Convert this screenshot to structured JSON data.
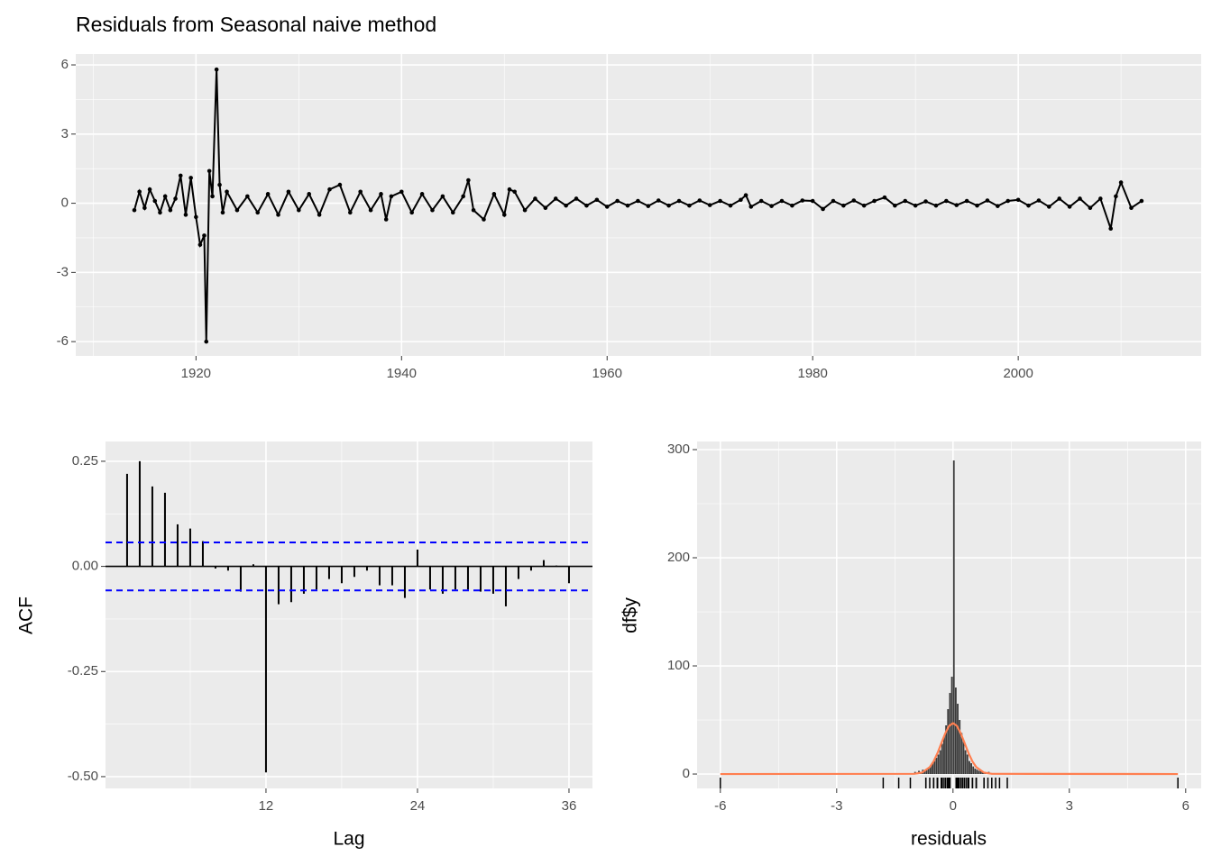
{
  "chart_data": [
    {
      "type": "line",
      "title": "Residuals from Seasonal naive method",
      "color": "#000000",
      "grid": true,
      "x": [
        1914,
        1914.5,
        1915,
        1915.5,
        1916,
        1916.5,
        1917,
        1917.5,
        1918,
        1918.5,
        1919,
        1919.5,
        1920,
        1920.4,
        1920.8,
        1921,
        1921.3,
        1921.6,
        1922,
        1922.3,
        1922.6,
        1923,
        1924,
        1925,
        1926,
        1927,
        1928,
        1929,
        1930,
        1931,
        1932,
        1933,
        1934,
        1935,
        1936,
        1937,
        1938,
        1938.5,
        1939,
        1940,
        1941,
        1942,
        1943,
        1944,
        1945,
        1946,
        1946.5,
        1947,
        1948,
        1949,
        1950,
        1950.5,
        1951,
        1952,
        1953,
        1954,
        1955,
        1956,
        1957,
        1958,
        1959,
        1960,
        1961,
        1962,
        1963,
        1964,
        1965,
        1966,
        1967,
        1968,
        1969,
        1970,
        1971,
        1972,
        1973,
        1973.5,
        1974,
        1975,
        1976,
        1977,
        1978,
        1979,
        1980,
        1981,
        1982,
        1983,
        1984,
        1985,
        1986,
        1987,
        1988,
        1989,
        1990,
        1991,
        1992,
        1993,
        1994,
        1995,
        1996,
        1997,
        1998,
        1999,
        2000,
        2001,
        2002,
        2003,
        2004,
        2005,
        2006,
        2007,
        2008,
        2009,
        2009.5,
        2010,
        2011,
        2012
      ],
      "values": [
        -0.3,
        0.5,
        -0.2,
        0.6,
        0.1,
        -0.4,
        0.3,
        -0.3,
        0.2,
        1.2,
        -0.5,
        1.1,
        -0.6,
        -1.8,
        -1.4,
        -6.0,
        1.4,
        0.3,
        5.8,
        0.8,
        -0.4,
        0.5,
        -0.3,
        0.3,
        -0.4,
        0.4,
        -0.5,
        0.5,
        -0.3,
        0.4,
        -0.5,
        0.6,
        0.8,
        -0.4,
        0.5,
        -0.3,
        0.4,
        -0.7,
        0.3,
        0.5,
        -0.4,
        0.4,
        -0.3,
        0.3,
        -0.4,
        0.3,
        1.0,
        -0.3,
        -0.7,
        0.4,
        -0.5,
        0.6,
        0.5,
        -0.3,
        0.2,
        -0.2,
        0.2,
        -0.1,
        0.2,
        -0.1,
        0.15,
        -0.15,
        0.1,
        -0.1,
        0.1,
        -0.12,
        0.12,
        -0.1,
        0.1,
        -0.1,
        0.12,
        -0.08,
        0.1,
        -0.1,
        0.15,
        0.35,
        -0.15,
        0.1,
        -0.12,
        0.1,
        -0.1,
        0.12,
        0.1,
        -0.25,
        0.1,
        -0.1,
        0.12,
        -0.1,
        0.1,
        0.25,
        -0.1,
        0.1,
        -0.1,
        0.08,
        -0.1,
        0.1,
        -0.08,
        0.1,
        -0.1,
        0.12,
        -0.12,
        0.1,
        0.15,
        -0.1,
        0.12,
        -0.15,
        0.2,
        -0.15,
        0.2,
        -0.2,
        0.2,
        -1.1,
        0.3,
        0.9,
        -0.2,
        0.1
      ],
      "xlim": [
        1908.3,
        2017.8
      ],
      "xticks": [
        1920,
        1940,
        1960,
        1980,
        2000
      ],
      "ylim": [
        -6.62,
        6.47
      ],
      "yticks": [
        -6,
        -3,
        0,
        3,
        6
      ]
    },
    {
      "type": "acf",
      "x_label": "Lag",
      "y_label": "ACF",
      "color": "#000000",
      "ci": 0.057,
      "ci_color": "#0000ff",
      "grid": true,
      "x": [
        1,
        2,
        3,
        4,
        5,
        6,
        7,
        8,
        9,
        10,
        11,
        12,
        13,
        14,
        15,
        16,
        17,
        18,
        19,
        20,
        21,
        22,
        23,
        24,
        25,
        26,
        27,
        28,
        29,
        30,
        31,
        32,
        33,
        34,
        35,
        36
      ],
      "values": [
        0.22,
        0.25,
        0.19,
        0.175,
        0.1,
        0.09,
        0.06,
        -0.005,
        -0.01,
        -0.06,
        0.005,
        -0.49,
        -0.09,
        -0.085,
        -0.065,
        -0.055,
        -0.03,
        -0.04,
        -0.025,
        -0.01,
        -0.045,
        -0.045,
        -0.075,
        0.04,
        -0.055,
        -0.065,
        -0.055,
        -0.055,
        -0.06,
        -0.065,
        -0.095,
        -0.03,
        -0.01,
        0.015,
        0.002,
        -0.04
      ],
      "xlim": [
        -0.71,
        37.86
      ],
      "xticks": [
        12,
        24,
        36
      ],
      "ylim": [
        -0.528,
        0.297
      ],
      "yticks": [
        {
          "value": -0.5,
          "label": "-0.50"
        },
        -0.25,
        {
          "value": 0,
          "label": "0.00"
        },
        0.25
      ]
    },
    {
      "type": "histogram",
      "x_label": "residuals",
      "y_label": "df$y",
      "color": "#3a3a3a",
      "grid": true,
      "rug": true,
      "bins": [
        -1,
        -0.95,
        -0.9,
        -0.85,
        -0.8,
        -0.75,
        -0.7,
        -0.65,
        -0.6,
        -0.55,
        -0.5,
        -0.45,
        -0.4,
        -0.35,
        -0.3,
        -0.25,
        -0.2,
        -0.15,
        -0.1,
        -0.05,
        0,
        0.05,
        0.1,
        0.15,
        0.2,
        0.25,
        0.3,
        0.35,
        0.4,
        0.45,
        0.5,
        0.55,
        0.6,
        0.65,
        0.7,
        0.75,
        0.8,
        0.85,
        0.9,
        0.95,
        1
      ],
      "counts": [
        2,
        1,
        3,
        2,
        4,
        3,
        5,
        6,
        8,
        10,
        12,
        15,
        18,
        22,
        28,
        35,
        45,
        60,
        75,
        90,
        290,
        80,
        65,
        50,
        38,
        30,
        22,
        18,
        12,
        10,
        7,
        5,
        4,
        3,
        3,
        2,
        2,
        1,
        2,
        1
      ],
      "density": {
        "color": "#ff7f50",
        "x": [
          -6,
          -1,
          -0.8,
          -0.6,
          -0.5,
          -0.4,
          -0.3,
          -0.2,
          -0.1,
          0,
          0.1,
          0.2,
          0.3,
          0.4,
          0.5,
          0.6,
          0.8,
          1,
          5.8
        ],
        "y": [
          0,
          0.2,
          1.3,
          6.4,
          11.7,
          19.3,
          28.5,
          37.6,
          44.5,
          47,
          44.5,
          37.6,
          28.5,
          19.3,
          11.7,
          6.4,
          1.3,
          0.2,
          0
        ]
      },
      "xlim": [
        -6.6,
        6.4
      ],
      "xticks": [
        -6,
        -3,
        0,
        3,
        6
      ],
      "ylim": [
        -13.3,
        307.5
      ],
      "yticks": [
        0,
        100,
        200,
        300
      ]
    }
  ]
}
